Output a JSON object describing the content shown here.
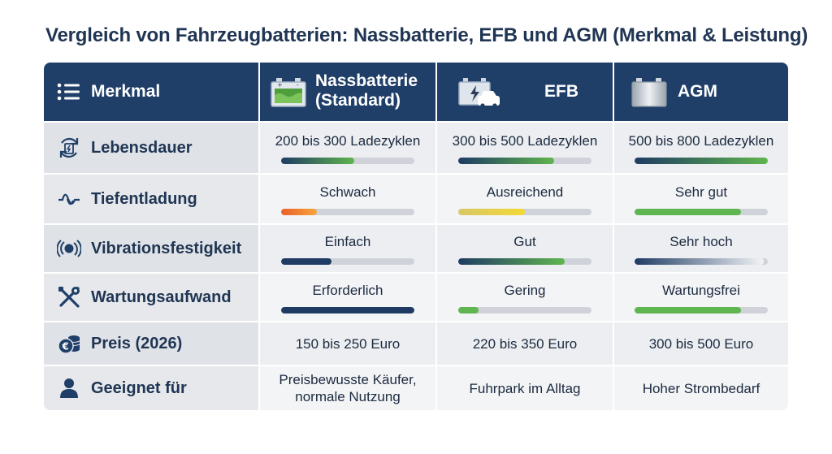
{
  "title": "Vergleich von Fahrzeugbatterien: Nassbatterie, EFB und AGM (Merkmal & Leistung)",
  "header": {
    "feature": "Merkmal",
    "columns": [
      {
        "line1": "Nassbatterie",
        "line2": "(Standard)"
      },
      {
        "line1": "EFB"
      },
      {
        "line1": "AGM"
      }
    ]
  },
  "rows": [
    {
      "feature": "Lebensdauer",
      "icon": "battery-cycle-icon",
      "values": [
        "200 bis 300 Ladezyklen",
        "300 bis 500 Ladezyklen",
        "500 bis 800 Ladezyklen"
      ],
      "bars": [
        0.55,
        0.72,
        1.0
      ]
    },
    {
      "feature": "Tiefentladung",
      "icon": "wave-icon",
      "values": [
        "Schwach",
        "Ausreichend",
        "Sehr gut"
      ],
      "bars": [
        0.27,
        0.5,
        0.8
      ]
    },
    {
      "feature": "Vibrationsfestigkeit",
      "icon": "vibration-icon",
      "values": [
        "Einfach",
        "Gut",
        "Sehr hoch"
      ],
      "bars": [
        0.38,
        0.8,
        0.97
      ]
    },
    {
      "feature": "Wartungsaufwand",
      "icon": "tools-icon",
      "values": [
        "Erforderlich",
        "Gering",
        "Wartungsfrei"
      ],
      "bars": [
        1.0,
        0.15,
        0.8
      ]
    },
    {
      "feature": "Preis (2026)",
      "icon": "coins-icon",
      "values": [
        "150 bis 250 Euro",
        "220 bis 350 Euro",
        "300 bis 500 Euro"
      ]
    },
    {
      "feature": "Geeignet für",
      "icon": "user-icon",
      "values": [
        "Preisbewusste Käufer, normale Nutzung",
        "Fuhrpark im Alltag",
        "Hoher Strombedarf"
      ]
    }
  ],
  "colors": {
    "header_bg": "#1f3f68",
    "navy": "#1f3b63",
    "green": "#5fb54f",
    "orange": "#f0772a",
    "yellow": "#e9d443"
  }
}
